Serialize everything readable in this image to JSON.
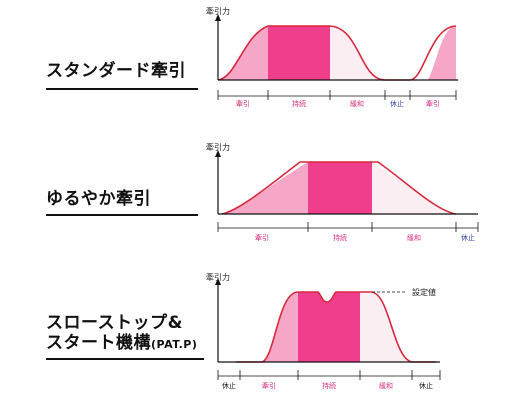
{
  "colors": {
    "curve": "#d8283c",
    "light_fill": "#f6a6c6",
    "hold_fill": "#ef3f8c",
    "release_fill": "#fbeef3",
    "axis": "#111111",
    "pink_text": "#d62d7d",
    "blue_text": "#2e3da8"
  },
  "sections": [
    {
      "title": "スタンダード牽引",
      "ylabel": "牽引力",
      "phases": [
        {
          "label": "牽引",
          "color": "pink"
        },
        {
          "label": "持続",
          "color": "pink"
        },
        {
          "label": "緩和",
          "color": "pink"
        },
        {
          "label": "休止",
          "color": "blue"
        },
        {
          "label": "牽引",
          "color": "pink"
        }
      ]
    },
    {
      "title": "ゆるやか牽引",
      "ylabel": "牽引力",
      "phases": [
        {
          "label": "牽引",
          "color": "pink"
        },
        {
          "label": "持続",
          "color": "pink"
        },
        {
          "label": "緩和",
          "color": "pink"
        },
        {
          "label": "休止",
          "color": "blue"
        }
      ]
    },
    {
      "title_line1": "スローストップ&",
      "title_line2": "スタート機構",
      "title_suffix": "(PAT.P)",
      "ylabel": "牽引力",
      "setpoint_label": "設定値",
      "phases": [
        {
          "label": "休止",
          "color": "black"
        },
        {
          "label": "牽引",
          "color": "pink"
        },
        {
          "label": "持続",
          "color": "pink"
        },
        {
          "label": "緩和",
          "color": "pink"
        },
        {
          "label": "休止",
          "color": "black"
        }
      ]
    }
  ]
}
